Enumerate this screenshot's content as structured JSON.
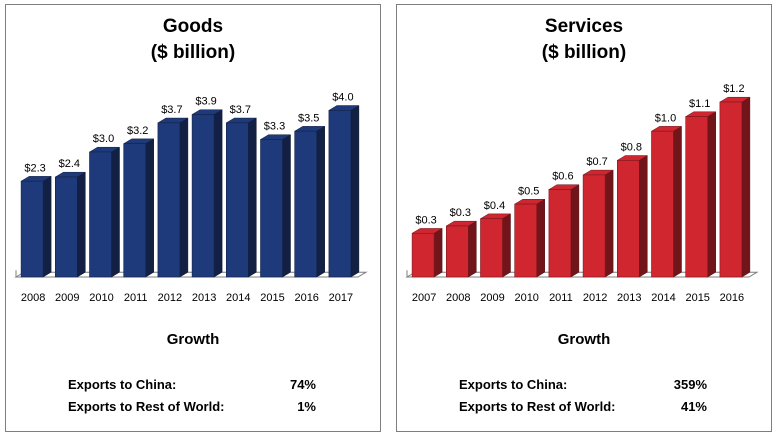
{
  "chart_data": [
    {
      "type": "bar",
      "title": "Goods",
      "subtitle": "($ billion)",
      "categories": [
        "2008",
        "2009",
        "2010",
        "2011",
        "2012",
        "2013",
        "2014",
        "2015",
        "2016",
        "2017"
      ],
      "values": [
        2.3,
        2.4,
        3.0,
        3.2,
        3.7,
        3.9,
        3.7,
        3.3,
        3.5,
        4.0
      ],
      "value_labels": [
        "$2.3",
        "$2.4",
        "$3.0",
        "$3.2",
        "$3.7",
        "$3.9",
        "$3.7",
        "$3.3",
        "$3.5",
        "$4.0"
      ],
      "color": "#1f3a7a",
      "ylim": [
        0,
        4.2
      ],
      "grid": false,
      "growth": {
        "title": "Growth",
        "rows": [
          {
            "label": "Exports to China:",
            "value": "74%"
          },
          {
            "label": "Exports to Rest of World:",
            "value": "1%"
          }
        ]
      }
    },
    {
      "type": "bar",
      "title": "Services",
      "subtitle": "($ billion)",
      "categories": [
        "2007",
        "2008",
        "2009",
        "2010",
        "2011",
        "2012",
        "2013",
        "2014",
        "2015",
        "2016"
      ],
      "values": [
        0.3,
        0.35,
        0.4,
        0.5,
        0.6,
        0.7,
        0.8,
        1.0,
        1.1,
        1.2
      ],
      "value_labels": [
        "$0.3",
        "$0.3",
        "$0.4",
        "$0.5",
        "$0.6",
        "$0.7",
        "$0.8",
        "$1.0",
        "$1.1",
        "$1.2"
      ],
      "color": "#d02630",
      "ylim": [
        0,
        1.2
      ],
      "grid": false,
      "growth": {
        "title": "Growth",
        "rows": [
          {
            "label": "Exports to China:",
            "value": "359%"
          },
          {
            "label": "Exports to Rest of World:",
            "value": "41%"
          }
        ]
      }
    }
  ]
}
